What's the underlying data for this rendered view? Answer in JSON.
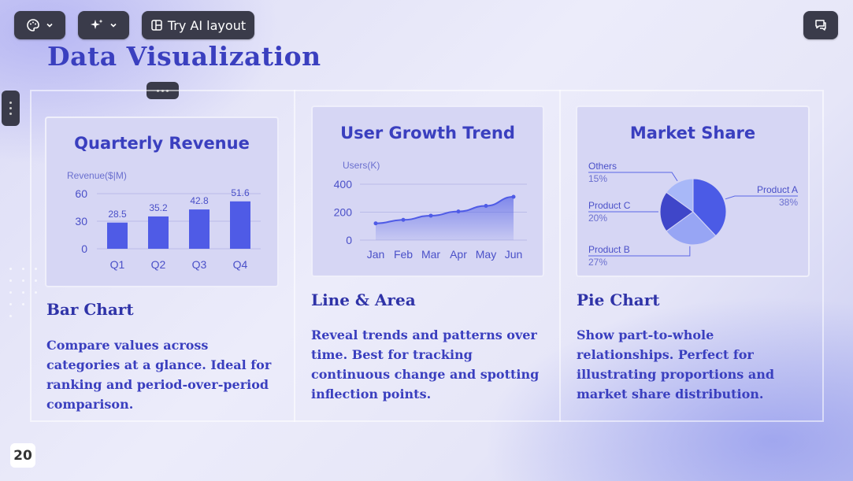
{
  "toolbar": {
    "theme_icon": "palette-icon",
    "ai_icon": "sparkle-icon",
    "ai_layout_label": "Try AI layout",
    "ai_layout_icon": "layout-icon",
    "comment_icon": "comment-icon"
  },
  "slide": {
    "title": "Data Visualization",
    "page_number": "20",
    "columns": [
      {
        "heading": "Bar Chart",
        "description": "Compare values across categories at a glance. Ideal for ranking and period-over-period comparison."
      },
      {
        "heading": "Line & Area",
        "description": "Reveal trends and patterns over time. Best for tracking continuous change and spotting inflection points."
      },
      {
        "heading": "Pie Chart",
        "description": "Show part-to-whole relationships. Perfect for illustrating proportions and market share distribution."
      }
    ]
  },
  "colors": {
    "accent": "#3a3fbf",
    "bar": "#4f5be6",
    "line": "#4f5be6",
    "pie": [
      "#4b5be6",
      "#97a5f4",
      "#3f46c9",
      "#a8b8f8"
    ]
  },
  "chart_data": [
    {
      "type": "bar",
      "title": "Quarterly Revenue",
      "ylabel": "Revenue($|M)",
      "categories": [
        "Q1",
        "Q2",
        "Q3",
        "Q4"
      ],
      "values": [
        28.5,
        35.2,
        42.8,
        51.6
      ],
      "yticks": [
        0,
        30,
        60
      ],
      "ylim": [
        0,
        60
      ],
      "grid": true
    },
    {
      "type": "area",
      "title": "User Growth Trend",
      "ylabel": "Users(K)",
      "categories": [
        "Jan",
        "Feb",
        "Mar",
        "Apr",
        "May",
        "Jun"
      ],
      "values": [
        120,
        145,
        175,
        205,
        245,
        310
      ],
      "yticks": [
        0,
        200,
        400
      ],
      "ylim": [
        0,
        400
      ],
      "grid": true
    },
    {
      "type": "pie",
      "title": "Market Share",
      "slices": [
        {
          "name": "Product A",
          "label": "38%",
          "value": 38
        },
        {
          "name": "Product B",
          "label": "27%",
          "value": 27
        },
        {
          "name": "Product C",
          "label": "20%",
          "value": 20
        },
        {
          "name": "Others",
          "label": "15%",
          "value": 15
        }
      ]
    }
  ]
}
